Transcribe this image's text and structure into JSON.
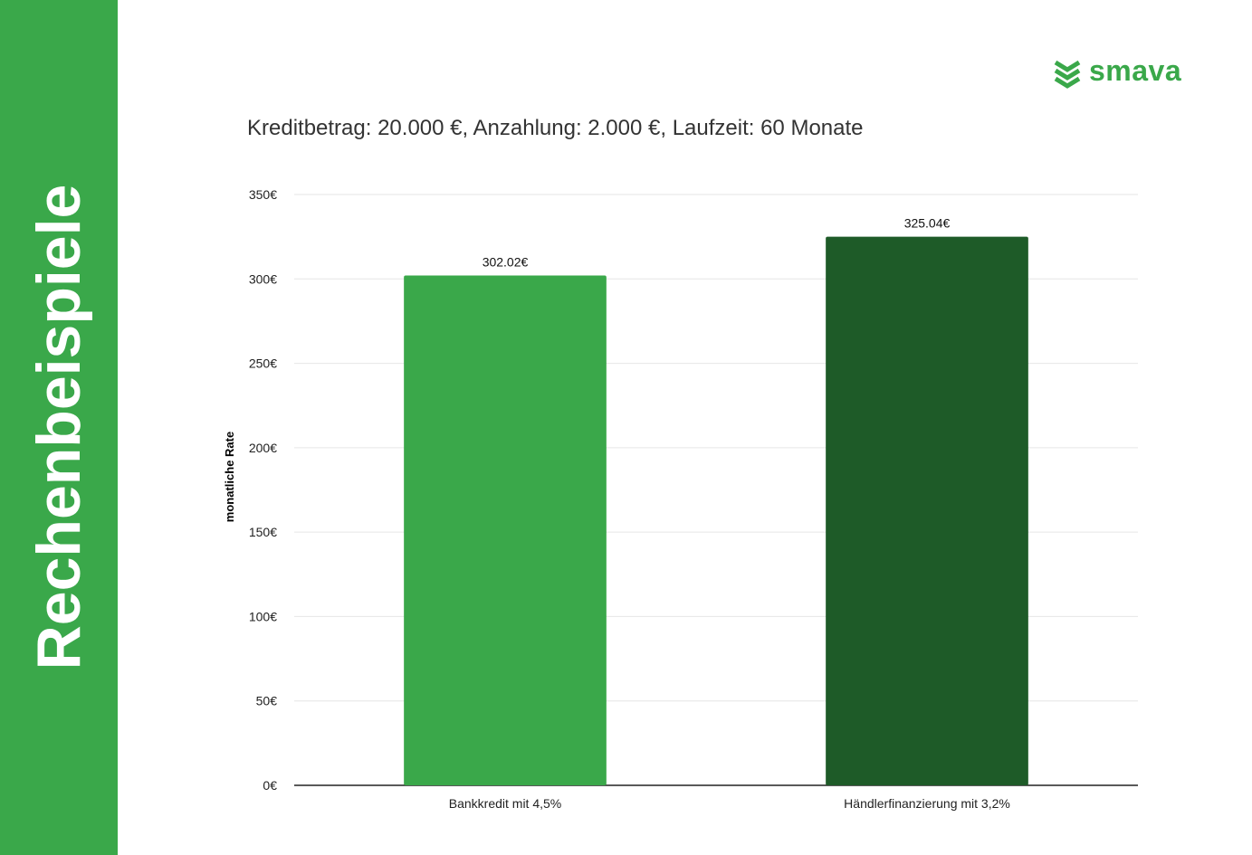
{
  "sidebar": {
    "title": "Rechenbeispiele",
    "color": "#3aa84a"
  },
  "logo": {
    "text": "smava",
    "icon": "chevron-stack-icon",
    "color": "#3aa84a"
  },
  "chart_data": {
    "type": "bar",
    "title": "Kreditbetrag: 20.000 €, Anzahlung: 2.000 €, Laufzeit: 60 Monate",
    "xlabel": "",
    "ylabel": "monatliche Rate",
    "categories": [
      "Bankkredit mit 4,5%",
      "Händlerfinanzierung mit 3,2%"
    ],
    "values": [
      302.02,
      325.04
    ],
    "data_labels": [
      "302.02€",
      "325.04€"
    ],
    "bar_colors": [
      "#3aa84a",
      "#1e5b28"
    ],
    "ylim": [
      0,
      350
    ],
    "yticks": [
      0,
      50,
      100,
      150,
      200,
      250,
      300,
      350
    ],
    "ytick_labels": [
      "0€",
      "50€",
      "100€",
      "150€",
      "200€",
      "250€",
      "300€",
      "350€"
    ],
    "grid": true,
    "legend": "none"
  }
}
